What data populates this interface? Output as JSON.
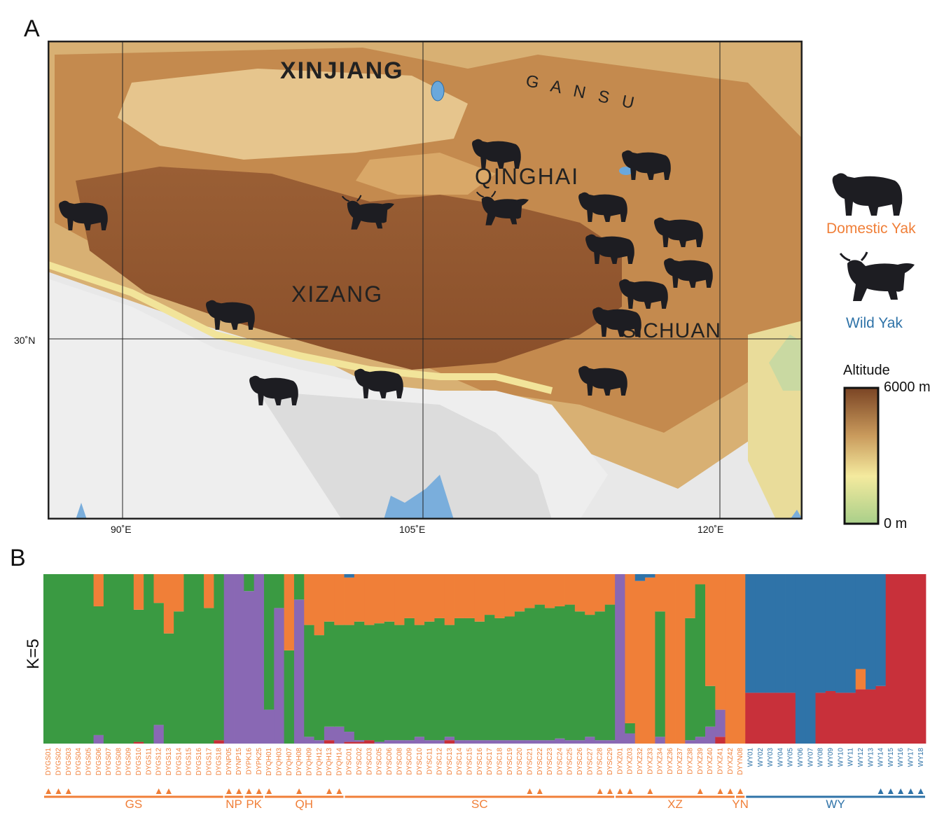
{
  "panel_a": {
    "letter": "A",
    "regions": [
      {
        "id": "xinjiang",
        "label": "XINJIANG"
      },
      {
        "id": "gansu",
        "label": "G A N S U"
      },
      {
        "id": "qinghai",
        "label": "QINGHAI"
      },
      {
        "id": "xizang",
        "label": "XIZANG"
      },
      {
        "id": "sichuan",
        "label": "SICHUAN"
      }
    ],
    "lon_ticks": [
      "90˚E",
      "105˚E",
      "120˚E"
    ],
    "lat_ticks": [
      "30˚N"
    ],
    "legend": {
      "domestic_label": "Domestic Yak",
      "wild_label": "Wild Yak",
      "altitude_title": "Altitude",
      "altitude_max": "6000 m",
      "altitude_min": "0 m",
      "colors": {
        "domestic": "#f07f38",
        "wild": "#2f73a8"
      }
    }
  },
  "panel_b": {
    "letter": "B",
    "ylabel": "K=5"
  },
  "chart_data": {
    "type": "bar",
    "stacked": true,
    "ylim": [
      0,
      1
    ],
    "ylabel": "K=5",
    "cluster_colors": [
      "#3a9a42",
      "#f07f38",
      "#8968b4",
      "#2f73a8",
      "#c8303a"
    ],
    "samples": [
      {
        "id": "DYGS01",
        "g": 1,
        "o": 0,
        "p": 0,
        "b": 0,
        "r": 0,
        "tri": 1
      },
      {
        "id": "DYGS02",
        "g": 1,
        "o": 0,
        "p": 0,
        "b": 0,
        "r": 0,
        "tri": 1
      },
      {
        "id": "DYGS03",
        "g": 1,
        "o": 0,
        "p": 0,
        "b": 0,
        "r": 0,
        "tri": 1
      },
      {
        "id": "DYGS04",
        "g": 1,
        "o": 0,
        "p": 0,
        "b": 0,
        "r": 0,
        "tri": 0
      },
      {
        "id": "DYGS05",
        "g": 1,
        "o": 0,
        "p": 0,
        "b": 0,
        "r": 0,
        "tri": 0
      },
      {
        "id": "DYGS06",
        "g": 0.76,
        "o": 0.19,
        "p": 0.05,
        "b": 0,
        "r": 0,
        "tri": 0
      },
      {
        "id": "DYGS07",
        "g": 1,
        "o": 0,
        "p": 0,
        "b": 0,
        "r": 0,
        "tri": 0
      },
      {
        "id": "DYGS08",
        "g": 1,
        "o": 0,
        "p": 0,
        "b": 0,
        "r": 0,
        "tri": 0
      },
      {
        "id": "DYGS09",
        "g": 1,
        "o": 0,
        "p": 0,
        "b": 0,
        "r": 0,
        "tri": 0
      },
      {
        "id": "DYGS10",
        "g": 0.78,
        "o": 0.21,
        "p": 0,
        "b": 0,
        "r": 0.01,
        "tri": 0
      },
      {
        "id": "DYGS11",
        "g": 1,
        "o": 0,
        "p": 0,
        "b": 0,
        "r": 0,
        "tri": 0
      },
      {
        "id": "DYGS12",
        "g": 0.72,
        "o": 0.17,
        "p": 0.11,
        "b": 0,
        "r": 0,
        "tri": 1
      },
      {
        "id": "DYGS13",
        "g": 0.65,
        "o": 0.35,
        "p": 0,
        "b": 0,
        "r": 0,
        "tri": 1
      },
      {
        "id": "DYGS14",
        "g": 0.78,
        "o": 0.22,
        "p": 0,
        "b": 0,
        "r": 0,
        "tri": 0
      },
      {
        "id": "DYGS15",
        "g": 1,
        "o": 0,
        "p": 0,
        "b": 0,
        "r": 0,
        "tri": 0
      },
      {
        "id": "DYGS16",
        "g": 1,
        "o": 0,
        "p": 0,
        "b": 0,
        "r": 0,
        "tri": 0
      },
      {
        "id": "DYGS17",
        "g": 0.8,
        "o": 0.2,
        "p": 0,
        "b": 0,
        "r": 0,
        "tri": 0
      },
      {
        "id": "DYGS18",
        "g": 0.98,
        "o": 0,
        "p": 0,
        "b": 0,
        "r": 0.02,
        "tri": 0
      },
      {
        "id": "DYNP05",
        "g": 0,
        "o": 0,
        "p": 1,
        "b": 0,
        "r": 0,
        "tri": 1
      },
      {
        "id": "DYNP15",
        "g": 0,
        "o": 0,
        "p": 1,
        "b": 0,
        "r": 0,
        "tri": 1
      },
      {
        "id": "DYPK16",
        "g": 0.1,
        "o": 0,
        "p": 0.9,
        "b": 0,
        "r": 0,
        "tri": 1
      },
      {
        "id": "DYPK25",
        "g": 0,
        "o": 0,
        "p": 1,
        "b": 0,
        "r": 0,
        "tri": 1
      },
      {
        "id": "DYQH01",
        "g": 0.8,
        "o": 0,
        "p": 0.2,
        "b": 0,
        "r": 0,
        "tri": 1
      },
      {
        "id": "DYQH03",
        "g": 0.2,
        "o": 0,
        "p": 0.8,
        "b": 0,
        "r": 0,
        "tri": 0
      },
      {
        "id": "DYQH07",
        "g": 0.55,
        "o": 0.45,
        "p": 0,
        "b": 0,
        "r": 0,
        "tri": 0
      },
      {
        "id": "DYQH08",
        "g": 0.15,
        "o": 0,
        "p": 0.85,
        "b": 0,
        "r": 0,
        "tri": 1
      },
      {
        "id": "DYQH09",
        "g": 0.66,
        "o": 0.3,
        "p": 0.04,
        "b": 0,
        "r": 0,
        "tri": 0
      },
      {
        "id": "DYQH12",
        "g": 0.62,
        "o": 0.36,
        "p": 0.02,
        "b": 0,
        "r": 0,
        "tri": 0
      },
      {
        "id": "DYQH13",
        "g": 0.62,
        "o": 0.28,
        "p": 0.08,
        "b": 0,
        "r": 0.02,
        "tri": 1
      },
      {
        "id": "DYQH14",
        "g": 0.6,
        "o": 0.3,
        "p": 0.1,
        "b": 0,
        "r": 0,
        "tri": 1
      },
      {
        "id": "DYSC01",
        "g": 0.63,
        "o": 0.28,
        "p": 0.06,
        "b": 0.02,
        "r": 0.01,
        "tri": 0
      },
      {
        "id": "DYSC02",
        "g": 0.7,
        "o": 0.28,
        "p": 0.01,
        "b": 0,
        "r": 0.01,
        "tri": 0
      },
      {
        "id": "DYSC03",
        "g": 0.68,
        "o": 0.3,
        "p": 0,
        "b": 0,
        "r": 0.02,
        "tri": 0
      },
      {
        "id": "DYSC05",
        "g": 0.7,
        "o": 0.29,
        "p": 0.01,
        "b": 0,
        "r": 0,
        "tri": 0
      },
      {
        "id": "DYSC06",
        "g": 0.7,
        "o": 0.28,
        "p": 0.02,
        "b": 0,
        "r": 0,
        "tri": 0
      },
      {
        "id": "DYSC08",
        "g": 0.68,
        "o": 0.3,
        "p": 0.02,
        "b": 0,
        "r": 0,
        "tri": 0
      },
      {
        "id": "DYSC09",
        "g": 0.72,
        "o": 0.26,
        "p": 0.02,
        "b": 0,
        "r": 0,
        "tri": 0
      },
      {
        "id": "DYSC10",
        "g": 0.66,
        "o": 0.3,
        "p": 0.04,
        "b": 0,
        "r": 0,
        "tri": 0
      },
      {
        "id": "DYSC11",
        "g": 0.7,
        "o": 0.28,
        "p": 0.02,
        "b": 0,
        "r": 0,
        "tri": 0
      },
      {
        "id": "DYSC12",
        "g": 0.72,
        "o": 0.26,
        "p": 0.02,
        "b": 0,
        "r": 0,
        "tri": 0
      },
      {
        "id": "DYSC13",
        "g": 0.66,
        "o": 0.3,
        "p": 0.02,
        "b": 0,
        "r": 0.02,
        "tri": 0
      },
      {
        "id": "DYSC14",
        "g": 0.72,
        "o": 0.26,
        "p": 0.02,
        "b": 0,
        "r": 0,
        "tri": 0
      },
      {
        "id": "DYSC15",
        "g": 0.72,
        "o": 0.26,
        "p": 0.02,
        "b": 0,
        "r": 0,
        "tri": 0
      },
      {
        "id": "DYSC16",
        "g": 0.7,
        "o": 0.28,
        "p": 0.02,
        "b": 0,
        "r": 0,
        "tri": 0
      },
      {
        "id": "DYSC17",
        "g": 0.74,
        "o": 0.24,
        "p": 0.02,
        "b": 0,
        "r": 0,
        "tri": 0
      },
      {
        "id": "DYSC18",
        "g": 0.72,
        "o": 0.26,
        "p": 0.02,
        "b": 0,
        "r": 0,
        "tri": 0
      },
      {
        "id": "DYSC19",
        "g": 0.73,
        "o": 0.25,
        "p": 0.02,
        "b": 0,
        "r": 0,
        "tri": 0
      },
      {
        "id": "DYSC20",
        "g": 0.76,
        "o": 0.22,
        "p": 0.02,
        "b": 0,
        "r": 0,
        "tri": 0
      },
      {
        "id": "DYSC21",
        "g": 0.78,
        "o": 0.2,
        "p": 0.02,
        "b": 0,
        "r": 0,
        "tri": 1
      },
      {
        "id": "DYSC22",
        "g": 0.8,
        "o": 0.18,
        "p": 0.02,
        "b": 0,
        "r": 0,
        "tri": 1
      },
      {
        "id": "DYSC23",
        "g": 0.78,
        "o": 0.2,
        "p": 0.02,
        "b": 0,
        "r": 0,
        "tri": 0
      },
      {
        "id": "DYSC24",
        "g": 0.78,
        "o": 0.19,
        "p": 0.03,
        "b": 0,
        "r": 0,
        "tri": 0
      },
      {
        "id": "DYSC25",
        "g": 0.8,
        "o": 0.18,
        "p": 0.02,
        "b": 0,
        "r": 0,
        "tri": 0
      },
      {
        "id": "DYSC26",
        "g": 0.76,
        "o": 0.22,
        "p": 0.02,
        "b": 0,
        "r": 0,
        "tri": 0
      },
      {
        "id": "DYSC27",
        "g": 0.72,
        "o": 0.24,
        "p": 0.04,
        "b": 0,
        "r": 0,
        "tri": 0
      },
      {
        "id": "DYSC28",
        "g": 0.76,
        "o": 0.22,
        "p": 0.02,
        "b": 0,
        "r": 0,
        "tri": 1
      },
      {
        "id": "DYSC29",
        "g": 0.8,
        "o": 0.18,
        "p": 0.02,
        "b": 0,
        "r": 0,
        "tri": 1
      },
      {
        "id": "DYXZ01",
        "g": 0,
        "o": 0,
        "p": 1,
        "b": 0,
        "r": 0,
        "tri": 1
      },
      {
        "id": "DYXZ03",
        "g": 0.06,
        "o": 0.88,
        "p": 0.06,
        "b": 0,
        "r": 0,
        "tri": 1
      },
      {
        "id": "DYXZ32",
        "g": 0,
        "o": 0.96,
        "p": 0,
        "b": 0.04,
        "r": 0,
        "tri": 0
      },
      {
        "id": "DYXZ33",
        "g": 0,
        "o": 0.98,
        "p": 0,
        "b": 0.02,
        "r": 0,
        "tri": 1
      },
      {
        "id": "DYXZ34",
        "g": 0.74,
        "o": 0.22,
        "p": 0.04,
        "b": 0,
        "r": 0,
        "tri": 0
      },
      {
        "id": "DYXZ36",
        "g": 0,
        "o": 1,
        "p": 0,
        "b": 0,
        "r": 0,
        "tri": 0
      },
      {
        "id": "DYXZ37",
        "g": 0,
        "o": 1,
        "p": 0,
        "b": 0,
        "r": 0,
        "tri": 0
      },
      {
        "id": "DYXZ38",
        "g": 0.72,
        "o": 0.26,
        "p": 0.02,
        "b": 0,
        "r": 0,
        "tri": 0
      },
      {
        "id": "DYXZ39",
        "g": 0.9,
        "o": 0.06,
        "p": 0.04,
        "b": 0,
        "r": 0,
        "tri": 1
      },
      {
        "id": "DYXZ40",
        "g": 0.24,
        "o": 0.66,
        "p": 0.1,
        "b": 0,
        "r": 0,
        "tri": 0
      },
      {
        "id": "DYXZ41",
        "g": 0,
        "o": 0.8,
        "p": 0.16,
        "b": 0,
        "r": 0.04,
        "tri": 1
      },
      {
        "id": "DYXZ42",
        "g": 0,
        "o": 1,
        "p": 0,
        "b": 0,
        "r": 0,
        "tri": 1
      },
      {
        "id": "DYYN08",
        "g": 0,
        "o": 1,
        "p": 0,
        "b": 0,
        "r": 0,
        "tri": 1
      },
      {
        "id": "WY01",
        "g": 0,
        "o": 0,
        "p": 0,
        "b": 0.7,
        "r": 0.3,
        "tri": 0
      },
      {
        "id": "WY02",
        "g": 0,
        "o": 0,
        "p": 0,
        "b": 0.7,
        "r": 0.3,
        "tri": 0
      },
      {
        "id": "WY03",
        "g": 0,
        "o": 0,
        "p": 0,
        "b": 0.7,
        "r": 0.3,
        "tri": 0
      },
      {
        "id": "WY04",
        "g": 0,
        "o": 0,
        "p": 0,
        "b": 0.7,
        "r": 0.3,
        "tri": 0
      },
      {
        "id": "WY05",
        "g": 0,
        "o": 0,
        "p": 0,
        "b": 0.7,
        "r": 0.3,
        "tri": 0
      },
      {
        "id": "WY06",
        "g": 0,
        "o": 0,
        "p": 0,
        "b": 1,
        "r": 0,
        "tri": 0
      },
      {
        "id": "WY07",
        "g": 0,
        "o": 0,
        "p": 0,
        "b": 1,
        "r": 0,
        "tri": 0
      },
      {
        "id": "WY08",
        "g": 0,
        "o": 0,
        "p": 0,
        "b": 0.7,
        "r": 0.3,
        "tri": 0
      },
      {
        "id": "WY09",
        "g": 0,
        "o": 0,
        "p": 0,
        "b": 0.69,
        "r": 0.31,
        "tri": 0
      },
      {
        "id": "WY10",
        "g": 0,
        "o": 0,
        "p": 0,
        "b": 0.7,
        "r": 0.3,
        "tri": 0
      },
      {
        "id": "WY11",
        "g": 0,
        "o": 0,
        "p": 0,
        "b": 0.7,
        "r": 0.3,
        "tri": 0
      },
      {
        "id": "WY12",
        "g": 0,
        "o": 0.12,
        "p": 0,
        "b": 0.56,
        "r": 0.32,
        "tri": 0
      },
      {
        "id": "WY13",
        "g": 0,
        "o": 0,
        "p": 0,
        "b": 0.68,
        "r": 0.32,
        "tri": 0
      },
      {
        "id": "WY14",
        "g": 0,
        "o": 0,
        "p": 0,
        "b": 0.66,
        "r": 0.34,
        "tri": 1
      },
      {
        "id": "WY15",
        "g": 0,
        "o": 0,
        "p": 0,
        "b": 0,
        "r": 1,
        "tri": 1
      },
      {
        "id": "WY16",
        "g": 0,
        "o": 0,
        "p": 0,
        "b": 0,
        "r": 1,
        "tri": 1
      },
      {
        "id": "WY17",
        "g": 0,
        "o": 0,
        "p": 0,
        "b": 0,
        "r": 1,
        "tri": 1
      },
      {
        "id": "WY18",
        "g": 0,
        "o": 0,
        "p": 0,
        "b": 0,
        "r": 1,
        "tri": 1
      }
    ],
    "groups": [
      {
        "label": "GS",
        "start": 0,
        "end": 17,
        "kind": "domestic"
      },
      {
        "label": "NP",
        "start": 18,
        "end": 19,
        "kind": "domestic"
      },
      {
        "label": "PK",
        "start": 20,
        "end": 21,
        "kind": "domestic"
      },
      {
        "label": "QH",
        "start": 22,
        "end": 29,
        "kind": "domestic"
      },
      {
        "label": "SC",
        "start": 30,
        "end": 56,
        "kind": "domestic"
      },
      {
        "label": "XZ",
        "start": 57,
        "end": 68,
        "kind": "domestic"
      },
      {
        "label": "YN",
        "start": 69,
        "end": 69,
        "kind": "domestic"
      },
      {
        "label": "WY",
        "start": 70,
        "end": 87,
        "kind": "wild"
      }
    ]
  }
}
